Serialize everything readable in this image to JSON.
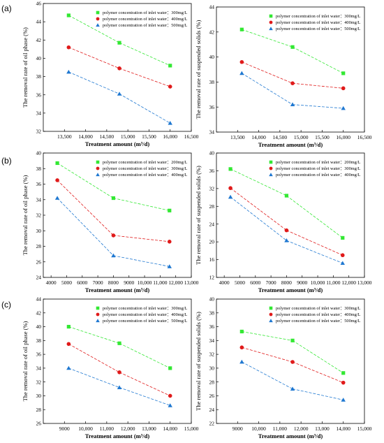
{
  "panel_labels": [
    "(a)",
    "(b)",
    "(c)"
  ],
  "colors": {
    "series1": "#33e833",
    "series2": "#e01a1a",
    "series3": "#1f78d1"
  },
  "chart_data": [
    {
      "type": "line",
      "panel": "(a)",
      "xlabel": "Treatment amount (m³/d)",
      "ylabel": "The removal rate of oil phase (%)",
      "xlim": [
        13000,
        16500
      ],
      "ylim": [
        32,
        46
      ],
      "xticks": [
        13500,
        14000,
        14500,
        15000,
        15500,
        16000,
        16500
      ],
      "xtick_labels": [
        "13,500",
        "14,000",
        "14,500",
        "15,000",
        "15,500",
        "16,000",
        "16,500"
      ],
      "yticks": [
        32,
        34,
        36,
        38,
        40,
        42,
        44,
        46
      ],
      "ytick_labels": [
        "32",
        "34",
        "36",
        "38",
        "40",
        "42",
        "44",
        "46"
      ],
      "x": [
        13600,
        14800,
        16000
      ],
      "series": [
        {
          "name": "polymer concentration of inlet water：300mg/L",
          "values": [
            44.7,
            41.7,
            39.2
          ]
        },
        {
          "name": "polymer concentration of inlet water：400mg/L",
          "values": [
            41.2,
            38.9,
            36.9
          ]
        },
        {
          "name": "polymer concentration of inlet water：500mg/L",
          "values": [
            38.5,
            36.1,
            32.9
          ]
        }
      ]
    },
    {
      "type": "line",
      "panel": "(a)",
      "xlabel": "Treatment amount (m³/d)",
      "ylabel": "The removal rate of suspended solids (%)",
      "xlim": [
        13000,
        16500
      ],
      "ylim": [
        34,
        44
      ],
      "xticks": [
        13500,
        14000,
        14500,
        15000,
        15500,
        16000,
        16500
      ],
      "xtick_labels": [
        "13,500",
        "14,000",
        "14,500",
        "15,000",
        "15,500",
        "16,000",
        "16,500"
      ],
      "yticks": [
        34,
        36,
        38,
        40,
        42,
        44
      ],
      "ytick_labels": [
        "34",
        "36",
        "38",
        "40",
        "42",
        "44"
      ],
      "x": [
        13600,
        14800,
        16000
      ],
      "series": [
        {
          "name": "polymer concentration of inlet water：300mg/L",
          "values": [
            42.2,
            40.8,
            38.7
          ]
        },
        {
          "name": "polymer concentration of inlet water：400mg/L",
          "values": [
            39.6,
            37.9,
            37.5
          ]
        },
        {
          "name": "polymer concentration of inlet water：500mg/L",
          "values": [
            38.7,
            36.2,
            35.9
          ]
        }
      ]
    },
    {
      "type": "line",
      "panel": "(b)",
      "xlabel": "Treatment amount (m³/d)",
      "ylabel": "The removal rate of oil phase (%)",
      "xlim": [
        3500,
        13000
      ],
      "ylim": [
        24,
        40
      ],
      "xticks": [
        4000,
        5000,
        6000,
        7000,
        8000,
        9000,
        10000,
        11000,
        12000,
        13000
      ],
      "xtick_labels": [
        "4000",
        "5000",
        "6000",
        "7000",
        "8000",
        "9000",
        "10,000",
        "11,000",
        "12,000",
        "13,000"
      ],
      "yticks": [
        24,
        26,
        28,
        30,
        32,
        34,
        36,
        38,
        40
      ],
      "ytick_labels": [
        "24",
        "26",
        "28",
        "30",
        "32",
        "34",
        "36",
        "38",
        "40"
      ],
      "x": [
        4400,
        8000,
        11600
      ],
      "series": [
        {
          "name": "polymer concentration of inlet water：200mg/L",
          "values": [
            38.7,
            34.2,
            32.6
          ]
        },
        {
          "name": "polymer concentration of inlet water：300mg/L",
          "values": [
            36.5,
            29.4,
            28.6
          ]
        },
        {
          "name": "polymer concentration of inlet water：400mg/L",
          "values": [
            34.2,
            26.8,
            25.4
          ]
        }
      ]
    },
    {
      "type": "line",
      "panel": "(b)",
      "xlabel": "Treatment amount (m³/d)",
      "ylabel": "The removal rate of suspended solids (%)",
      "xlim": [
        3500,
        13000
      ],
      "ylim": [
        12,
        40
      ],
      "xticks": [
        4000,
        5000,
        6000,
        7000,
        8000,
        9000,
        10000,
        11000,
        12000,
        13000
      ],
      "xtick_labels": [
        "4000",
        "5000",
        "6000",
        "7000",
        "8000",
        "9000",
        "10,000",
        "11,000",
        "12,000",
        "13,000"
      ],
      "yticks": [
        12,
        16,
        20,
        24,
        28,
        32,
        36,
        40
      ],
      "ytick_labels": [
        "12",
        "16",
        "20",
        "24",
        "28",
        "32",
        "36",
        "40"
      ],
      "x": [
        4400,
        8000,
        11600
      ],
      "series": [
        {
          "name": "polymer concentration of inlet water：200mg/L",
          "values": [
            36.4,
            30.4,
            20.9
          ]
        },
        {
          "name": "polymer concentration of inlet water：300mg/L",
          "values": [
            32.1,
            22.6,
            17.0
          ]
        },
        {
          "name": "polymer concentration of inlet water：400mg/L",
          "values": [
            30.1,
            20.3,
            15.2
          ]
        }
      ]
    },
    {
      "type": "line",
      "panel": "(c)",
      "xlabel": "Treatment amount (m³/d)",
      "ylabel": "The removal rate of oil phase (%)",
      "xlim": [
        8000,
        15000
      ],
      "ylim": [
        26,
        44
      ],
      "xticks": [
        9000,
        10000,
        11000,
        12000,
        13000,
        14000,
        15000
      ],
      "xtick_labels": [
        "9000",
        "10,000",
        "11,000",
        "12,000",
        "13,000",
        "14,000",
        "15,000"
      ],
      "yticks": [
        26,
        28,
        30,
        32,
        34,
        36,
        38,
        40,
        42,
        44
      ],
      "ytick_labels": [
        "26",
        "28",
        "30",
        "32",
        "34",
        "36",
        "38",
        "40",
        "42",
        "44"
      ],
      "x": [
        9200,
        11600,
        14000
      ],
      "series": [
        {
          "name": "polymer concentration of inlet water：300mg/L",
          "values": [
            40.0,
            37.6,
            34.0
          ]
        },
        {
          "name": "polymer concentration of inlet water：400mg/L",
          "values": [
            37.5,
            33.4,
            30.0
          ]
        },
        {
          "name": "polymer concentration of inlet water：500mg/L",
          "values": [
            34.0,
            31.2,
            28.6
          ]
        }
      ]
    },
    {
      "type": "line",
      "panel": "(c)",
      "xlabel": "Treatment amount (m³/d)",
      "ylabel": "The removal rate of suspended solids (%)",
      "xlim": [
        8000,
        15000
      ],
      "ylim": [
        22,
        40
      ],
      "xticks": [
        9000,
        10000,
        11000,
        12000,
        13000,
        14000,
        15000
      ],
      "xtick_labels": [
        "9000",
        "10,000",
        "11,000",
        "12,000",
        "13,000",
        "14,000",
        "15,000"
      ],
      "yticks": [
        22,
        24,
        26,
        28,
        30,
        32,
        34,
        36,
        38,
        40
      ],
      "ytick_labels": [
        "22",
        "24",
        "26",
        "28",
        "30",
        "32",
        "34",
        "36",
        "38",
        "40"
      ],
      "x": [
        9200,
        11600,
        14000
      ],
      "series": [
        {
          "name": "polymer concentration of inlet water：300mg/L",
          "values": [
            35.3,
            34.0,
            29.3
          ]
        },
        {
          "name": "polymer concentration of inlet water：400mg/L",
          "values": [
            33.0,
            30.9,
            27.9
          ]
        },
        {
          "name": "polymer concentration of inlet water：500mg/L",
          "values": [
            30.9,
            27.0,
            25.4
          ]
        }
      ]
    }
  ]
}
